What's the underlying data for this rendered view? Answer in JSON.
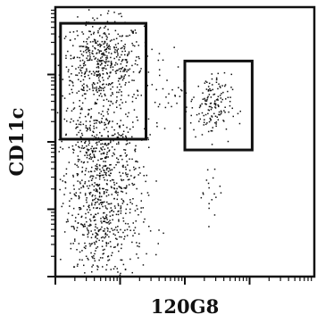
{
  "chart_data": {
    "type": "scatter",
    "title": "",
    "xlabel": "120G8",
    "ylabel": "CD11c",
    "xlim": [
      0,
      100
    ],
    "ylim": [
      0,
      100
    ],
    "x_scale": "log",
    "y_scale": "log",
    "grid": false,
    "legend": "none",
    "colors": {
      "points": "#111111",
      "frame": "#111111",
      "gates": "#111111",
      "background": "#ffffff"
    },
    "populations": [
      {
        "name": "",
        "center": [
          18,
          79
        ],
        "spread": [
          8,
          8
        ],
        "count": 520
      },
      {
        "name": "",
        "center": [
          17,
          47
        ],
        "spread": [
          8,
          10
        ],
        "count": 420
      },
      {
        "name": "",
        "center": [
          18,
          21
        ],
        "spread": [
          8,
          12
        ],
        "count": 520
      },
      {
        "name": "",
        "center": [
          60,
          63
        ],
        "spread": [
          4,
          6
        ],
        "count": 150
      },
      {
        "name": "",
        "center": [
          40,
          70
        ],
        "spread": [
          6,
          8
        ],
        "count": 45
      },
      {
        "name": "",
        "center": [
          60,
          33
        ],
        "spread": [
          2,
          6
        ],
        "count": 18
      }
    ],
    "gates": [
      {
        "x": [
          2,
          35
        ],
        "y": [
          51,
          94
        ]
      },
      {
        "x": [
          50,
          76
        ],
        "y": [
          47,
          80
        ]
      }
    ]
  }
}
